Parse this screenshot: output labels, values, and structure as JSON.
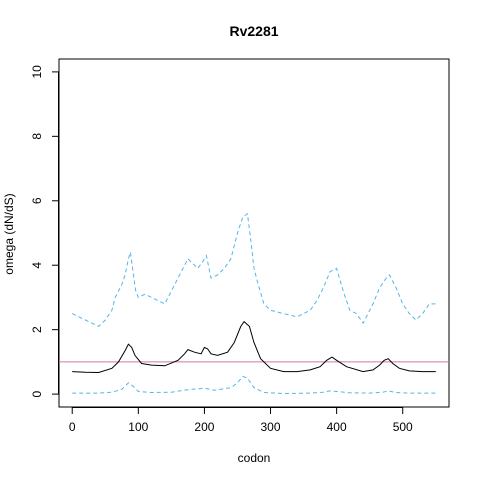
{
  "chart_data": {
    "type": "line",
    "title": "Rv2281",
    "xlabel": "codon",
    "ylabel": "omega (dN/dS)",
    "xlim": [
      -20,
      570
    ],
    "ylim": [
      -0.4,
      10.4
    ],
    "x_ticks": [
      0,
      100,
      200,
      300,
      400,
      500
    ],
    "y_ticks": [
      0,
      2,
      4,
      6,
      8,
      10
    ],
    "grid": false,
    "reference_line": {
      "y": 1,
      "color": "#cc79a7"
    },
    "series": [
      {
        "style": "dashed",
        "color": "#56b4e9",
        "points": [
          [
            0,
            2.5
          ],
          [
            10,
            2.4
          ],
          [
            20,
            2.3
          ],
          [
            30,
            2.2
          ],
          [
            40,
            2.1
          ],
          [
            50,
            2.3
          ],
          [
            60,
            2.6
          ],
          [
            65,
            3.0
          ],
          [
            70,
            3.2
          ],
          [
            75,
            3.4
          ],
          [
            80,
            3.7
          ],
          [
            85,
            4.2
          ],
          [
            88,
            4.4
          ],
          [
            92,
            3.8
          ],
          [
            96,
            3.2
          ],
          [
            100,
            3.0
          ],
          [
            110,
            3.1
          ],
          [
            120,
            3.0
          ],
          [
            130,
            2.9
          ],
          [
            140,
            2.8
          ],
          [
            150,
            3.2
          ],
          [
            160,
            3.6
          ],
          [
            170,
            4.0
          ],
          [
            175,
            4.2
          ],
          [
            180,
            4.1
          ],
          [
            190,
            3.9
          ],
          [
            197,
            4.1
          ],
          [
            203,
            4.3
          ],
          [
            210,
            3.6
          ],
          [
            220,
            3.7
          ],
          [
            230,
            3.9
          ],
          [
            240,
            4.2
          ],
          [
            250,
            5.0
          ],
          [
            258,
            5.5
          ],
          [
            265,
            5.6
          ],
          [
            270,
            4.8
          ],
          [
            275,
            3.9
          ],
          [
            280,
            3.5
          ],
          [
            290,
            2.8
          ],
          [
            300,
            2.6
          ],
          [
            320,
            2.5
          ],
          [
            340,
            2.4
          ],
          [
            360,
            2.6
          ],
          [
            370,
            2.9
          ],
          [
            380,
            3.3
          ],
          [
            390,
            3.8
          ],
          [
            400,
            3.9
          ],
          [
            410,
            3.2
          ],
          [
            420,
            2.6
          ],
          [
            430,
            2.5
          ],
          [
            440,
            2.2
          ],
          [
            455,
            2.8
          ],
          [
            465,
            3.3
          ],
          [
            475,
            3.6
          ],
          [
            480,
            3.7
          ],
          [
            490,
            3.3
          ],
          [
            500,
            2.8
          ],
          [
            510,
            2.5
          ],
          [
            520,
            2.3
          ],
          [
            530,
            2.5
          ],
          [
            540,
            2.8
          ],
          [
            550,
            2.8
          ]
        ]
      },
      {
        "style": "solid",
        "color": "#000000",
        "points": [
          [
            0,
            0.7
          ],
          [
            20,
            0.68
          ],
          [
            40,
            0.67
          ],
          [
            60,
            0.8
          ],
          [
            70,
            1.0
          ],
          [
            80,
            1.35
          ],
          [
            85,
            1.55
          ],
          [
            90,
            1.45
          ],
          [
            95,
            1.2
          ],
          [
            105,
            0.95
          ],
          [
            120,
            0.9
          ],
          [
            140,
            0.88
          ],
          [
            160,
            1.05
          ],
          [
            170,
            1.25
          ],
          [
            175,
            1.38
          ],
          [
            185,
            1.3
          ],
          [
            195,
            1.25
          ],
          [
            200,
            1.45
          ],
          [
            205,
            1.4
          ],
          [
            210,
            1.25
          ],
          [
            220,
            1.2
          ],
          [
            235,
            1.3
          ],
          [
            245,
            1.6
          ],
          [
            255,
            2.1
          ],
          [
            260,
            2.25
          ],
          [
            268,
            2.1
          ],
          [
            275,
            1.6
          ],
          [
            285,
            1.1
          ],
          [
            300,
            0.8
          ],
          [
            320,
            0.7
          ],
          [
            340,
            0.7
          ],
          [
            360,
            0.75
          ],
          [
            375,
            0.85
          ],
          [
            385,
            1.05
          ],
          [
            393,
            1.15
          ],
          [
            400,
            1.05
          ],
          [
            415,
            0.85
          ],
          [
            440,
            0.7
          ],
          [
            455,
            0.75
          ],
          [
            465,
            0.9
          ],
          [
            472,
            1.05
          ],
          [
            478,
            1.1
          ],
          [
            485,
            0.95
          ],
          [
            495,
            0.8
          ],
          [
            510,
            0.72
          ],
          [
            530,
            0.7
          ],
          [
            550,
            0.7
          ]
        ]
      },
      {
        "style": "dashed",
        "color": "#56b4e9",
        "points": [
          [
            0,
            0.03
          ],
          [
            40,
            0.03
          ],
          [
            60,
            0.06
          ],
          [
            75,
            0.15
          ],
          [
            85,
            0.35
          ],
          [
            92,
            0.25
          ],
          [
            100,
            0.08
          ],
          [
            120,
            0.05
          ],
          [
            150,
            0.06
          ],
          [
            170,
            0.12
          ],
          [
            180,
            0.15
          ],
          [
            200,
            0.18
          ],
          [
            215,
            0.12
          ],
          [
            240,
            0.2
          ],
          [
            250,
            0.35
          ],
          [
            258,
            0.55
          ],
          [
            265,
            0.5
          ],
          [
            275,
            0.2
          ],
          [
            290,
            0.05
          ],
          [
            320,
            0.02
          ],
          [
            360,
            0.03
          ],
          [
            380,
            0.06
          ],
          [
            390,
            0.1
          ],
          [
            400,
            0.08
          ],
          [
            420,
            0.04
          ],
          [
            450,
            0.03
          ],
          [
            470,
            0.06
          ],
          [
            478,
            0.1
          ],
          [
            490,
            0.05
          ],
          [
            510,
            0.03
          ],
          [
            550,
            0.03
          ]
        ]
      }
    ]
  }
}
